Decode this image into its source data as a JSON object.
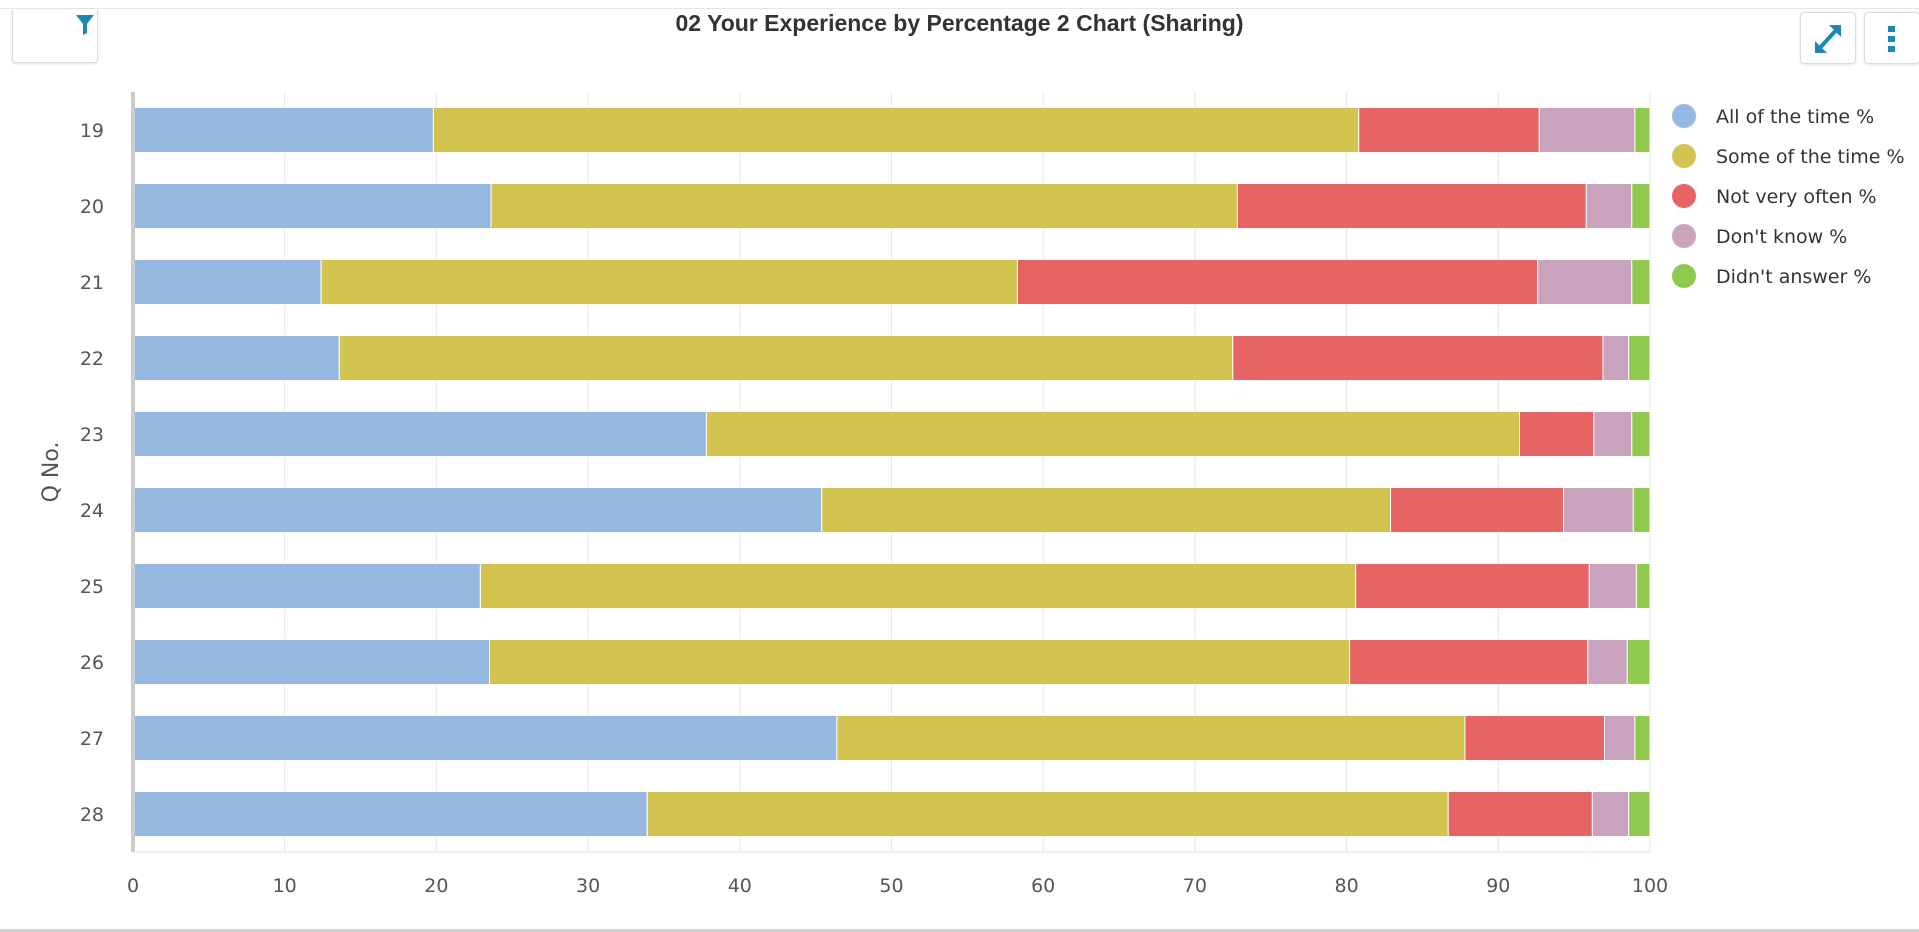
{
  "header": {
    "title": "02 Your Experience by Percentage 2 Chart (Sharing)"
  },
  "toolbar": {
    "filter_icon": "filter-icon",
    "expand_icon": "expand-icon",
    "more_icon": "more-vertical-icon",
    "accent_color": "#1e88b4"
  },
  "chart_data": {
    "type": "bar",
    "orientation": "horizontal",
    "stacked": true,
    "categories": [
      "19",
      "20",
      "21",
      "22",
      "23",
      "24",
      "25",
      "26",
      "27",
      "28"
    ],
    "ylabel": "Q No.",
    "xlabel": "",
    "xlim": [
      0,
      100
    ],
    "xticks": [
      "0",
      "10",
      "20",
      "30",
      "40",
      "50",
      "60",
      "70",
      "80",
      "90",
      "100"
    ],
    "grid": true,
    "legend_position": "right",
    "series": [
      {
        "name": "All of the time %",
        "color": "#94b8e0",
        "values": [
          19.8,
          23.6,
          12.4,
          13.6,
          37.8,
          45.4,
          22.9,
          23.5,
          46.4,
          33.9
        ]
      },
      {
        "name": "Some of the time %",
        "color": "#d3c44f",
        "values": [
          61.0,
          49.2,
          45.9,
          58.9,
          53.6,
          37.5,
          57.7,
          56.7,
          41.4,
          52.8
        ]
      },
      {
        "name": "Not very often %",
        "color": "#e66464",
        "values": [
          11.9,
          23.0,
          34.3,
          24.4,
          4.9,
          11.4,
          15.4,
          15.7,
          9.2,
          9.5
        ]
      },
      {
        "name": "Don't know %",
        "color": "#c9a2bd",
        "values": [
          6.3,
          3.0,
          6.2,
          1.7,
          2.5,
          4.6,
          3.1,
          2.6,
          2.0,
          2.4
        ]
      },
      {
        "name": "Didn't answer %",
        "color": "#8fc94e",
        "values": [
          1.0,
          1.2,
          1.2,
          1.4,
          1.2,
          1.1,
          0.9,
          1.5,
          1.0,
          1.4
        ]
      }
    ]
  }
}
